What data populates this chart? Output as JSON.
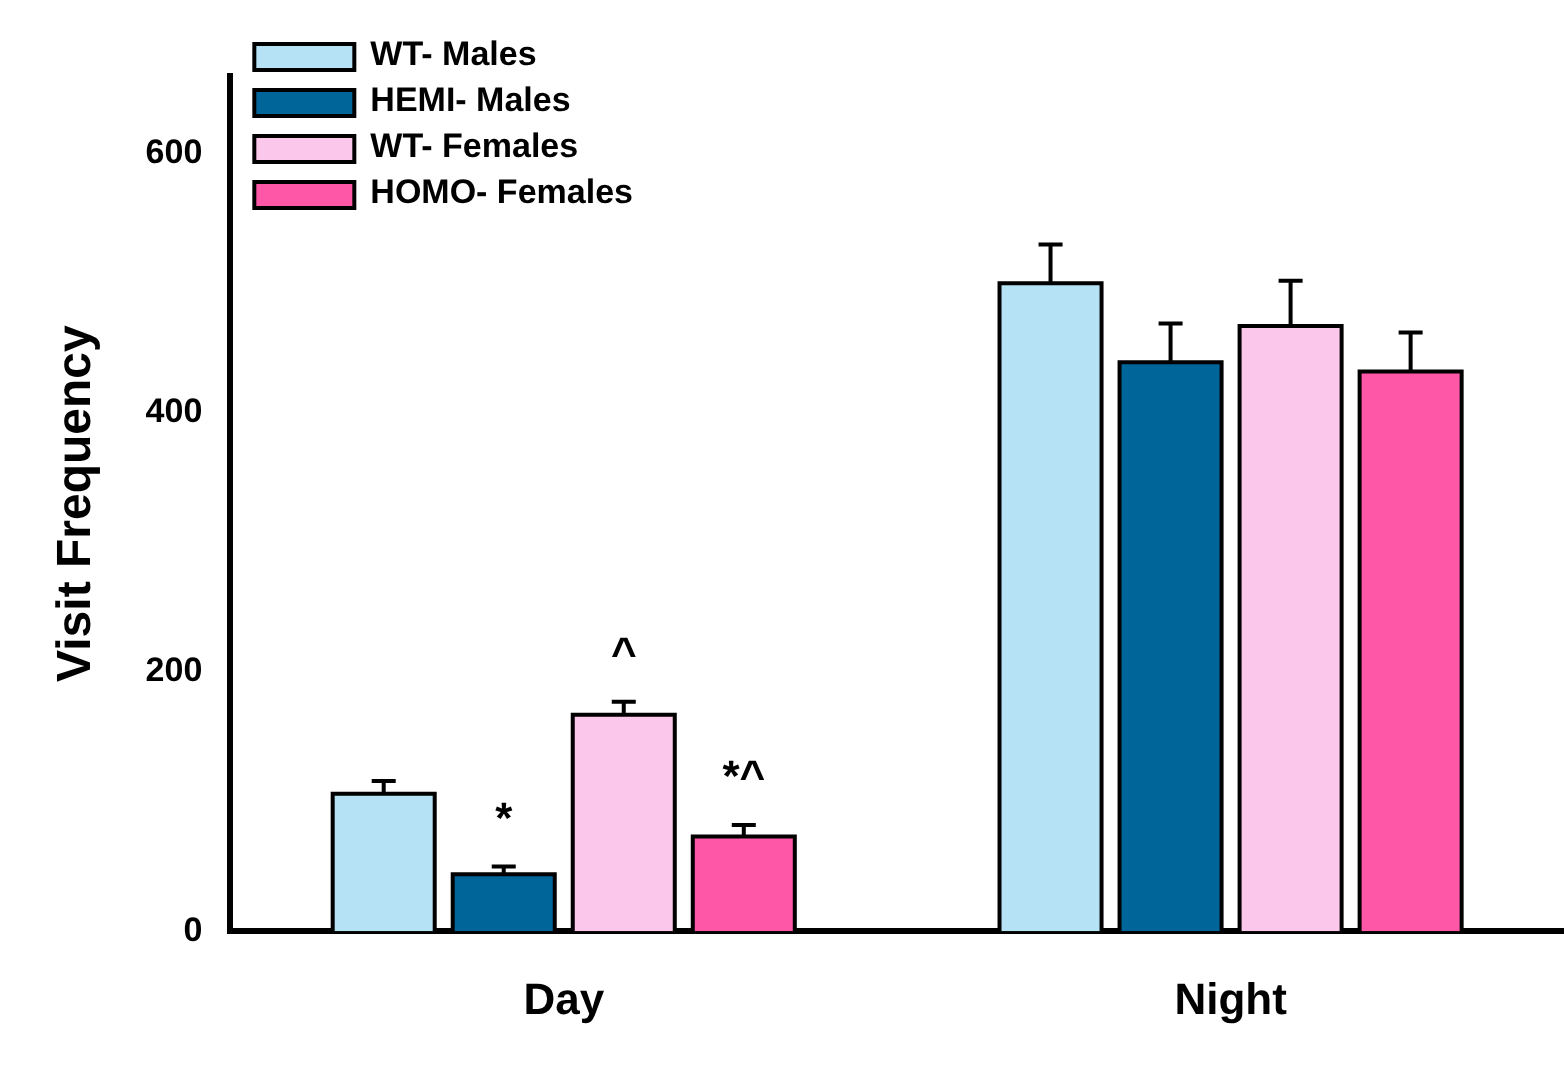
{
  "chart_data": {
    "type": "bar",
    "ylabel": "Visit Frequency",
    "categories": [
      "Day",
      "Night"
    ],
    "series": [
      {
        "name": "WT- Males",
        "color": "#b5e3f5",
        "values": [
          106,
          500
        ],
        "errors": [
          10,
          30
        ]
      },
      {
        "name": "HEMI- Males",
        "color": "#006699",
        "values": [
          44,
          439
        ],
        "errors": [
          6,
          30
        ]
      },
      {
        "name": "WT- Females",
        "color": "#fbc8eb",
        "values": [
          167,
          467
        ],
        "errors": [
          10,
          35
        ]
      },
      {
        "name": "HOMO- Females",
        "color": "#ff57a8",
        "values": [
          73,
          432
        ],
        "errors": [
          9,
          30
        ]
      }
    ],
    "ylim": [
      0,
      660
    ],
    "yticks": [
      0,
      200,
      400,
      600
    ],
    "grid": false,
    "legend": "top left",
    "annotations": [
      "*",
      "^",
      "*^"
    ]
  }
}
